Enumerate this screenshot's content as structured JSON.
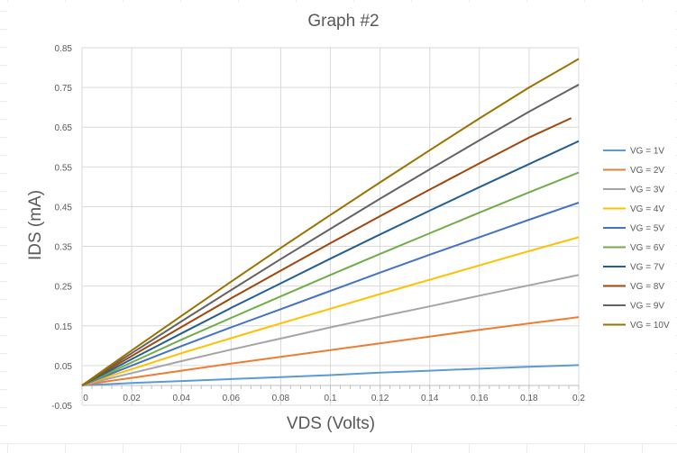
{
  "chart_data": {
    "type": "line",
    "title": "Graph #2",
    "xlabel": "VDS (Volts)",
    "ylabel": "IDS (mA)",
    "xlim": [
      0,
      0.2
    ],
    "ylim": [
      -0.05,
      0.85
    ],
    "xticks": [
      0,
      0.02,
      0.04,
      0.06,
      0.08,
      0.1,
      0.12,
      0.14,
      0.16,
      0.18,
      0.2
    ],
    "xtick_labels": [
      "0",
      "0.02",
      "0.04",
      "0.06",
      "0.08",
      "0.1",
      "0.12",
      "0.14",
      "0.16",
      "0.18",
      "0.2"
    ],
    "yticks": [
      -0.05,
      0.05,
      0.15,
      0.25,
      0.35,
      0.45,
      0.55,
      0.65,
      0.75,
      0.85
    ],
    "ytick_labels": [
      "-0.05",
      "0.05",
      "0.15",
      "0.25",
      "0.35",
      "0.45",
      "0.55",
      "0.65",
      "0.75",
      "0.85"
    ],
    "grid": true,
    "legend_position": "right",
    "series": [
      {
        "name": "VG = 1V",
        "color": "#5B9BD5",
        "x": [
          0,
          0.01,
          0.02,
          0.04,
          0.06,
          0.08,
          0.1,
          0.12,
          0.14,
          0.16,
          0.18,
          0.2
        ],
        "y": [
          0,
          0.003,
          0.006,
          0.011,
          0.016,
          0.021,
          0.026,
          0.032,
          0.037,
          0.042,
          0.047,
          0.051
        ]
      },
      {
        "name": "VG = 2V",
        "color": "#ED7D31",
        "x": [
          0,
          0.01,
          0.02,
          0.04,
          0.06,
          0.08,
          0.1,
          0.12,
          0.14,
          0.16,
          0.18,
          0.2
        ],
        "y": [
          0,
          0.01,
          0.019,
          0.037,
          0.055,
          0.072,
          0.089,
          0.106,
          0.123,
          0.14,
          0.156,
          0.172
        ]
      },
      {
        "name": "VG = 3V",
        "color": "#A5A5A5",
        "x": [
          0,
          0.01,
          0.02,
          0.04,
          0.06,
          0.08,
          0.1,
          0.12,
          0.14,
          0.16,
          0.18,
          0.2
        ],
        "y": [
          0,
          0.016,
          0.031,
          0.061,
          0.09,
          0.118,
          0.146,
          0.173,
          0.199,
          0.226,
          0.252,
          0.278
        ]
      },
      {
        "name": "VG = 4V",
        "color": "#FFC000",
        "x": [
          0,
          0.01,
          0.02,
          0.04,
          0.06,
          0.08,
          0.1,
          0.12,
          0.14,
          0.16,
          0.18,
          0.2
        ],
        "y": [
          0,
          0.021,
          0.041,
          0.081,
          0.119,
          0.156,
          0.193,
          0.23,
          0.266,
          0.302,
          0.338,
          0.373
        ]
      },
      {
        "name": "VG = 5V",
        "color": "#4472C4",
        "x": [
          0,
          0.01,
          0.02,
          0.04,
          0.06,
          0.08,
          0.1,
          0.12,
          0.14,
          0.16,
          0.18,
          0.2
        ],
        "y": [
          0,
          0.025,
          0.05,
          0.099,
          0.146,
          0.192,
          0.238,
          0.284,
          0.329,
          0.373,
          0.417,
          0.46
        ]
      },
      {
        "name": "VG = 6V",
        "color": "#70AD47",
        "x": [
          0,
          0.01,
          0.02,
          0.04,
          0.06,
          0.08,
          0.1,
          0.12,
          0.14,
          0.16,
          0.18,
          0.2
        ],
        "y": [
          0,
          0.029,
          0.058,
          0.115,
          0.17,
          0.224,
          0.278,
          0.331,
          0.383,
          0.435,
          0.486,
          0.536
        ]
      },
      {
        "name": "VG = 7V",
        "color": "#255E91",
        "x": [
          0,
          0.01,
          0.02,
          0.04,
          0.06,
          0.08,
          0.1,
          0.12,
          0.14,
          0.16,
          0.18,
          0.2
        ],
        "y": [
          0,
          0.033,
          0.066,
          0.131,
          0.195,
          0.257,
          0.319,
          0.38,
          0.44,
          0.499,
          0.557,
          0.615
        ]
      },
      {
        "name": "VG = 8V",
        "color": "#9E480E",
        "x": [
          0,
          0.01,
          0.02,
          0.04,
          0.06,
          0.08,
          0.1,
          0.12,
          0.14,
          0.16,
          0.18,
          0.197
        ],
        "y": [
          0,
          0.037,
          0.074,
          0.147,
          0.219,
          0.289,
          0.358,
          0.426,
          0.493,
          0.559,
          0.624,
          0.673
        ]
      },
      {
        "name": "VG = 9V",
        "color": "#636363",
        "x": [
          0,
          0.01,
          0.02,
          0.04,
          0.06,
          0.08,
          0.1,
          0.12,
          0.14,
          0.16,
          0.18,
          0.2
        ],
        "y": [
          0,
          0.041,
          0.081,
          0.161,
          0.24,
          0.318,
          0.394,
          0.47,
          0.544,
          0.617,
          0.689,
          0.757
        ]
      },
      {
        "name": "VG = 10V",
        "color": "#997300",
        "x": [
          0,
          0.01,
          0.02,
          0.04,
          0.06,
          0.08,
          0.1,
          0.12,
          0.14,
          0.16,
          0.18,
          0.2
        ],
        "y": [
          0,
          0.044,
          0.088,
          0.175,
          0.261,
          0.346,
          0.429,
          0.511,
          0.592,
          0.672,
          0.75,
          0.822
        ]
      }
    ]
  }
}
